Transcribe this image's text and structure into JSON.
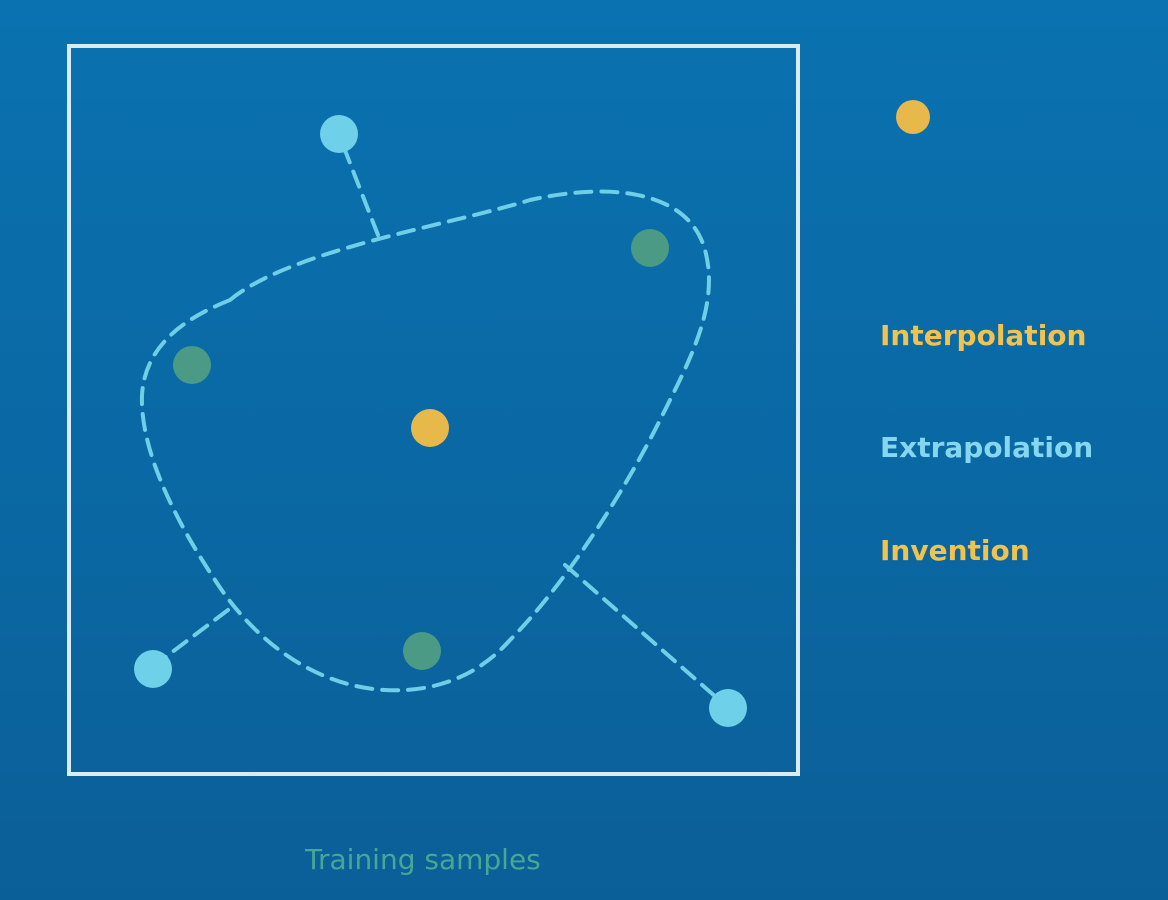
{
  "legend": {
    "interpolation": "Interpolation",
    "extrapolation": "Extrapolation",
    "invention": "Invention"
  },
  "caption": "Training samples",
  "colors": {
    "bg_top": "#0a72b0",
    "bg_bottom": "#0b5f98",
    "frame": "#d9ecf4",
    "boundary": "#6fcfe6",
    "training_dot": "#4a9a86",
    "extrapolation_dot": "#6fd0ea",
    "interpolation_dot": "#e7b84a",
    "invention_dot": "#e7b84a",
    "interpolation_text": "#f0c24e",
    "extrapolation_text": "#84d7ee",
    "invention_text": "#f0c24e",
    "caption_text": "#45a896"
  },
  "icons": {
    "training_dot": "filled-circle",
    "extrapolation_dot": "filled-circle",
    "interpolation_dot": "filled-circle",
    "invention_dot": "filled-circle"
  }
}
